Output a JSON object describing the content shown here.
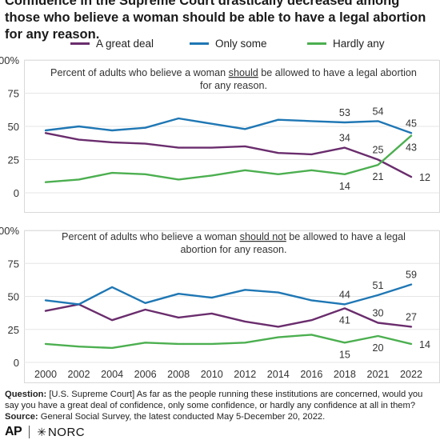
{
  "title": "Confidence in the Supreme Court drastically decreased among those who believe a woman should be able to have a legal abortion for any reason.",
  "legend": [
    {
      "name": "A great deal",
      "color": "#6a2d6d"
    },
    {
      "name": "Only some",
      "color": "#1f77b4"
    },
    {
      "name": "Hardly any",
      "color": "#4caf50"
    }
  ],
  "chart_data": [
    {
      "type": "line",
      "subtitle_lines": [
        "Percent of adults who believe a woman should be allowed to have a legal abortion",
        "for any reason."
      ],
      "subtitle_underline_word": "should",
      "x": [
        "2000",
        "2002",
        "2004",
        "2006",
        "2008",
        "2010",
        "2012",
        "2014",
        "2016",
        "2018",
        "2021",
        "2022"
      ],
      "ylim": [
        0,
        100
      ],
      "yticks": [
        "0",
        "25",
        "50",
        "75",
        "100%"
      ],
      "series": [
        {
          "name": "A great deal",
          "color": "#6a2d6d",
          "values": [
            45,
            40,
            38,
            37,
            34,
            34,
            35,
            30,
            29,
            34,
            25,
            12
          ]
        },
        {
          "name": "Only some",
          "color": "#1f77b4",
          "values": [
            47,
            50,
            47,
            49,
            56,
            52,
            48,
            55,
            54,
            53,
            54,
            45
          ]
        },
        {
          "name": "Hardly any",
          "color": "#4caf50",
          "values": [
            8,
            10,
            15,
            14,
            10,
            13,
            17,
            14,
            17,
            14,
            21,
            43
          ]
        }
      ],
      "labels": [
        {
          "series": 1,
          "idx": 9,
          "text": "53",
          "pos": "above"
        },
        {
          "series": 1,
          "idx": 10,
          "text": "54",
          "pos": "above"
        },
        {
          "series": 1,
          "idx": 11,
          "text": "45",
          "pos": "above"
        },
        {
          "series": 0,
          "idx": 9,
          "text": "34",
          "pos": "above"
        },
        {
          "series": 0,
          "idx": 10,
          "text": "25",
          "pos": "above"
        },
        {
          "series": 0,
          "idx": 11,
          "text": "12",
          "pos": "right"
        },
        {
          "series": 2,
          "idx": 9,
          "text": "14",
          "pos": "below"
        },
        {
          "series": 2,
          "idx": 10,
          "text": "21",
          "pos": "below"
        },
        {
          "series": 2,
          "idx": 11,
          "text": "43",
          "pos": "below"
        }
      ]
    },
    {
      "type": "line",
      "subtitle_lines": [
        "Percent of adults who believe a woman should not be allowed to have a legal",
        "abortion for any reason."
      ],
      "subtitle_underline_word": "should not",
      "x": [
        "2000",
        "2002",
        "2004",
        "2006",
        "2008",
        "2010",
        "2012",
        "2014",
        "2016",
        "2018",
        "2021",
        "2022"
      ],
      "ylim": [
        0,
        100
      ],
      "yticks": [
        "0",
        "25",
        "50",
        "75",
        "100%"
      ],
      "series": [
        {
          "name": "A great deal",
          "color": "#6a2d6d",
          "values": [
            39,
            44,
            32,
            40,
            34,
            37,
            31,
            27,
            32,
            41,
            30,
            27
          ]
        },
        {
          "name": "Only some",
          "color": "#1f77b4",
          "values": [
            47,
            44,
            57,
            45,
            52,
            49,
            55,
            53,
            47,
            44,
            51,
            59
          ]
        },
        {
          "name": "Hardly any",
          "color": "#4caf50",
          "values": [
            14,
            12,
            11,
            15,
            14,
            14,
            15,
            19,
            21,
            15,
            20,
            14
          ]
        }
      ],
      "labels": [
        {
          "series": 1,
          "idx": 9,
          "text": "44",
          "pos": "above"
        },
        {
          "series": 1,
          "idx": 10,
          "text": "51",
          "pos": "above"
        },
        {
          "series": 1,
          "idx": 11,
          "text": "59",
          "pos": "above"
        },
        {
          "series": 0,
          "idx": 9,
          "text": "41",
          "pos": "below"
        },
        {
          "series": 0,
          "idx": 10,
          "text": "30",
          "pos": "above"
        },
        {
          "series": 0,
          "idx": 11,
          "text": "27",
          "pos": "above"
        },
        {
          "series": 2,
          "idx": 9,
          "text": "15",
          "pos": "below"
        },
        {
          "series": 2,
          "idx": 10,
          "text": "20",
          "pos": "below"
        },
        {
          "series": 2,
          "idx": 11,
          "text": "14",
          "pos": "right"
        }
      ]
    }
  ],
  "footer": {
    "question_label": "Question:",
    "question_text": " [U.S. Supreme Court] As far as the people running these institutions are concerned, would you say you have a great deal of confidence, only some confidence, or hardly any confidence at all in them?",
    "source_label": "Source:",
    "source_text": " General Social Survey, the latest conducted May 5-December 20, 2022."
  },
  "logos": {
    "ap": "AP",
    "norc": "NORC"
  }
}
